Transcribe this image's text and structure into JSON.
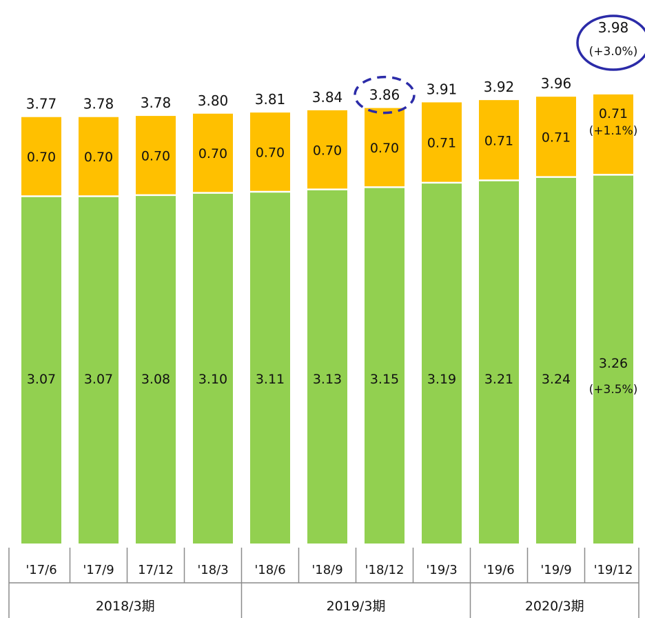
{
  "chart_data": {
    "type": "bar",
    "stacked": true,
    "categories": [
      "'17/6",
      "'17/9",
      "17/12",
      "'18/3",
      "'18/6",
      "'18/9",
      "'18/12",
      "'19/3",
      "'19/6",
      "'19/9",
      "'19/12"
    ],
    "groups": [
      {
        "label": "2018/3期",
        "categories": [
          "'17/6",
          "'17/9",
          "17/12",
          "'18/3"
        ]
      },
      {
        "label": "2019/3期",
        "categories": [
          "'18/6",
          "'18/9",
          "'18/12",
          "'19/3"
        ]
      },
      {
        "label": "2020/3期",
        "categories": [
          "'19/6",
          "'19/9",
          "'19/12"
        ]
      }
    ],
    "series": [
      {
        "color": "#92D050",
        "values": [
          3.07,
          3.07,
          3.08,
          3.1,
          3.11,
          3.13,
          3.15,
          3.19,
          3.21,
          3.24,
          3.26
        ]
      },
      {
        "color": "#FFC000",
        "values": [
          0.7,
          0.7,
          0.7,
          0.7,
          0.7,
          0.7,
          0.7,
          0.71,
          0.71,
          0.71,
          0.71
        ]
      }
    ],
    "totals": [
      3.77,
      3.78,
      3.78,
      3.8,
      3.81,
      3.84,
      3.86,
      3.91,
      3.92,
      3.96,
      3.98
    ],
    "segment_labels": [
      [
        "3.07",
        "3.07",
        "3.08",
        "3.10",
        "3.11",
        "3.13",
        "3.15",
        "3.19",
        "3.21",
        "3.24",
        "3.26"
      ],
      [
        "0.70",
        "0.70",
        "0.70",
        "0.70",
        "0.70",
        "0.70",
        "0.70",
        "0.71",
        "0.71",
        "0.71",
        "0.71"
      ]
    ],
    "total_labels": [
      "3.77",
      "3.78",
      "3.78",
      "3.80",
      "3.81",
      "3.84",
      "3.86",
      "3.91",
      "3.92",
      "3.96",
      "3.98"
    ],
    "annotations": [
      {
        "category": "'19/12",
        "target": "total",
        "text": "(+3.0%)"
      },
      {
        "category": "'19/12",
        "target": "series2",
        "text": "(+1.1%)"
      },
      {
        "category": "'19/12",
        "target": "series1",
        "text": "(+3.5%)"
      }
    ],
    "highlights": [
      {
        "category": "'18/12",
        "target": "total",
        "style": "dashed-ellipse",
        "color": "#2B2BA8"
      },
      {
        "category": "'19/12",
        "target": "total",
        "style": "solid-ellipse",
        "color": "#2B2BA8"
      }
    ],
    "ylim": [
      0,
      4.5
    ],
    "grid": false,
    "legend": "none",
    "title": "",
    "xlabel": "",
    "ylabel": ""
  }
}
